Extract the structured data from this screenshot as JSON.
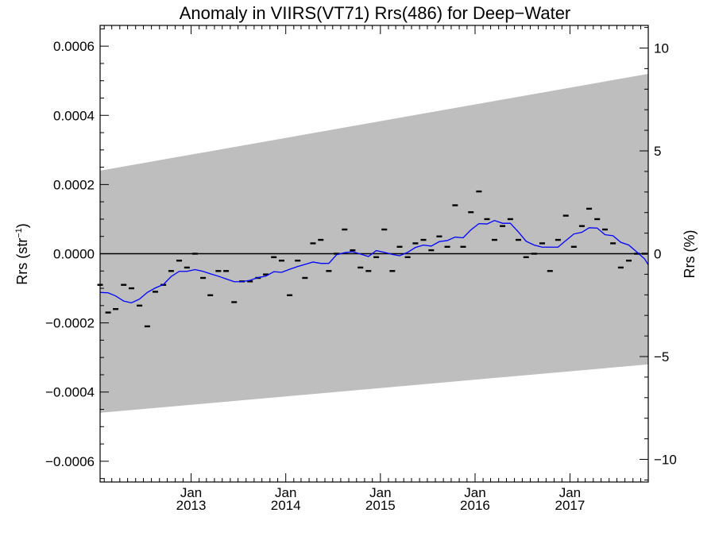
{
  "chart_data": {
    "type": "line",
    "title": "Anomaly in VIIRS(VT71) Rrs(486) for Deep−Water",
    "ylabel": "Rrs (str",
    "ylabel_sup": "−1",
    "ylabel_close": ")",
    "y2label": "Rrs (%)",
    "xlim": [
      "2012-01-16",
      "2017-10-30"
    ],
    "ylim": [
      -0.00066,
      0.00066
    ],
    "y2lim": [
      -11.1,
      11.1
    ],
    "grid": false,
    "legend": "none",
    "colors": {
      "band": "#bebebe",
      "monthly": "#000000",
      "smoothed": "#0000ff",
      "zero_line": "#000000"
    },
    "x_tick_labels": [
      {
        "month": "Jan",
        "year": "2013",
        "date": "2013-01-01"
      },
      {
        "month": "Jan",
        "year": "2014",
        "date": "2014-01-01"
      },
      {
        "month": "Jan",
        "year": "2015",
        "date": "2015-01-01"
      },
      {
        "month": "Jan",
        "year": "2016",
        "date": "2016-01-01"
      },
      {
        "month": "Jan",
        "year": "2017",
        "date": "2017-01-01"
      }
    ],
    "y_tick_labels": [
      {
        "value": 0.0006,
        "label": "0.0006"
      },
      {
        "value": 0.0004,
        "label": "0.0004"
      },
      {
        "value": 0.0002,
        "label": "0.0002"
      },
      {
        "value": 0.0,
        "label": "0.0000"
      },
      {
        "value": -0.0002,
        "label": "−0.0002"
      },
      {
        "value": -0.0004,
        "label": "−0.0004"
      },
      {
        "value": -0.0006,
        "label": "−0.0006"
      }
    ],
    "y2_tick_labels": [
      {
        "value": 10,
        "label": "10"
      },
      {
        "value": 5,
        "label": "5"
      },
      {
        "value": 0,
        "label": "0"
      },
      {
        "value": -5,
        "label": "−5"
      },
      {
        "value": -10,
        "label": "−10"
      }
    ],
    "band": {
      "x": [
        "2012-01-16",
        "2017-10-30"
      ],
      "upper": [
        0.00024,
        0.00052
      ],
      "lower": [
        -0.00046,
        -0.00032
      ]
    },
    "series": [
      {
        "type": "marker",
        "x": [
          "2012-01-16",
          "2012-02-16",
          "2012-03-16",
          "2012-04-16",
          "2012-05-16",
          "2012-06-16",
          "2012-07-16",
          "2012-08-16",
          "2012-09-16",
          "2012-10-16",
          "2012-11-16",
          "2012-12-16",
          "2013-01-16",
          "2013-02-16",
          "2013-03-16",
          "2013-04-16",
          "2013-05-16",
          "2013-06-16",
          "2013-07-16",
          "2013-08-16",
          "2013-09-16",
          "2013-10-16",
          "2013-11-16",
          "2013-12-16",
          "2014-01-16",
          "2014-02-16",
          "2014-03-16",
          "2014-04-16",
          "2014-05-16",
          "2014-06-16",
          "2014-07-16",
          "2014-08-16",
          "2014-09-16",
          "2014-10-16",
          "2014-11-16",
          "2014-12-16",
          "2015-01-16",
          "2015-02-16",
          "2015-03-16",
          "2015-04-16",
          "2015-05-16",
          "2015-06-16",
          "2015-07-16",
          "2015-08-16",
          "2015-09-16",
          "2015-10-16",
          "2015-11-16",
          "2015-12-16",
          "2016-01-16",
          "2016-02-16",
          "2016-03-16",
          "2016-04-16",
          "2016-05-16",
          "2016-06-16",
          "2016-07-16",
          "2016-08-16",
          "2016-09-16",
          "2016-10-16",
          "2016-11-16",
          "2016-12-16",
          "2017-01-16",
          "2017-02-16",
          "2017-03-16",
          "2017-04-16",
          "2017-05-16",
          "2017-06-16",
          "2017-07-16",
          "2017-08-16",
          "2017-09-16",
          "2017-10-16"
        ],
        "y": [
          -9e-05,
          -0.00017,
          -0.00016,
          -9e-05,
          -0.0001,
          -0.00015,
          -0.00021,
          -0.00011,
          -9e-05,
          -5e-05,
          -2e-05,
          -4e-05,
          0.0,
          -7e-05,
          -0.00012,
          -5e-05,
          -5e-05,
          -0.00014,
          -8e-05,
          -8e-05,
          -7e-05,
          -6e-05,
          -1e-05,
          -2e-05,
          -0.00012,
          -2e-05,
          -7e-05,
          3e-05,
          4e-05,
          -5e-05,
          0.0,
          7e-05,
          1e-05,
          -4e-05,
          -5e-05,
          -1e-05,
          7e-05,
          -5e-05,
          2e-05,
          -1e-05,
          3e-05,
          4e-05,
          1e-05,
          5e-05,
          2e-05,
          0.00014,
          2e-05,
          0.00012,
          0.00018,
          0.0001,
          4e-05,
          8e-05,
          0.0001,
          4e-05,
          -1e-05,
          0.0,
          3e-05,
          -5e-05,
          4e-05,
          0.00011,
          2e-05,
          8e-05,
          0.00013,
          0.0001,
          7e-05,
          3e-05,
          -4e-05,
          -2e-05,
          0.0,
          0.0
        ]
      },
      {
        "type": "line",
        "x": [
          "2012-01-16",
          "2012-02-16",
          "2012-03-16",
          "2012-04-16",
          "2012-05-16",
          "2012-06-16",
          "2012-07-16",
          "2012-08-16",
          "2012-09-16",
          "2012-10-16",
          "2012-11-16",
          "2012-12-16",
          "2013-01-16",
          "2013-02-16",
          "2013-03-16",
          "2013-04-16",
          "2013-05-16",
          "2013-06-16",
          "2013-07-16",
          "2013-08-16",
          "2013-09-16",
          "2013-10-16",
          "2013-11-16",
          "2013-12-16",
          "2014-01-16",
          "2014-02-16",
          "2014-03-16",
          "2014-04-16",
          "2014-05-16",
          "2014-06-16",
          "2014-07-16",
          "2014-08-16",
          "2014-09-16",
          "2014-10-16",
          "2014-11-16",
          "2014-12-16",
          "2015-01-16",
          "2015-02-16",
          "2015-03-16",
          "2015-04-16",
          "2015-05-16",
          "2015-06-16",
          "2015-07-16",
          "2015-08-16",
          "2015-09-16",
          "2015-10-16",
          "2015-11-16",
          "2015-12-16",
          "2016-01-16",
          "2016-02-16",
          "2016-03-16",
          "2016-04-16",
          "2016-05-16",
          "2016-06-16",
          "2016-07-16",
          "2016-08-16",
          "2016-09-16",
          "2016-10-16",
          "2016-11-16",
          "2016-12-16",
          "2017-01-16",
          "2017-02-16",
          "2017-03-16",
          "2017-04-16",
          "2017-05-16",
          "2017-06-16",
          "2017-07-16",
          "2017-08-16",
          "2017-09-16",
          "2017-10-16",
          "2017-10-30"
        ],
        "y": [
          -0.000112,
          -0.000113,
          -0.000122,
          -0.000137,
          -0.000142,
          -0.000131,
          -0.000112,
          -9.9e-05,
          -8.9e-05,
          -6.6e-05,
          -5.1e-05,
          -5.1e-05,
          -4.6e-05,
          -5.1e-05,
          -5.8e-05,
          -6.5e-05,
          -7.3e-05,
          -8.1e-05,
          -8.1e-05,
          -7.7e-05,
          -6.9e-05,
          -6.5e-05,
          -5.2e-05,
          -5.4e-05,
          -4.5e-05,
          -3.7e-05,
          -3.1e-05,
          -2.4e-05,
          -2.8e-05,
          -2.8e-05,
          -3e-06,
          3e-06,
          6e-06,
          -1e-06,
          -8e-06,
          9e-06,
          4e-06,
          -2e-06,
          -6e-06,
          4e-06,
          1.8e-05,
          2.5e-05,
          2.2e-05,
          3.5e-05,
          3.8e-05,
          4.8e-05,
          4.6e-05,
          6.9e-05,
          8.7e-05,
          8.6e-05,
          9.6e-05,
          8.8e-05,
          8.8e-05,
          6.3e-05,
          3.6e-05,
          2.5e-05,
          1.9e-05,
          1.9e-05,
          1.9e-05,
          3.8e-05,
          5.7e-05,
          6.2e-05,
          7.5e-05,
          7.4e-05,
          5.5e-05,
          5.2e-05,
          3.3e-05,
          2.5e-05,
          5e-06,
          -1.5e-05,
          -3.2e-05
        ]
      }
    ]
  }
}
